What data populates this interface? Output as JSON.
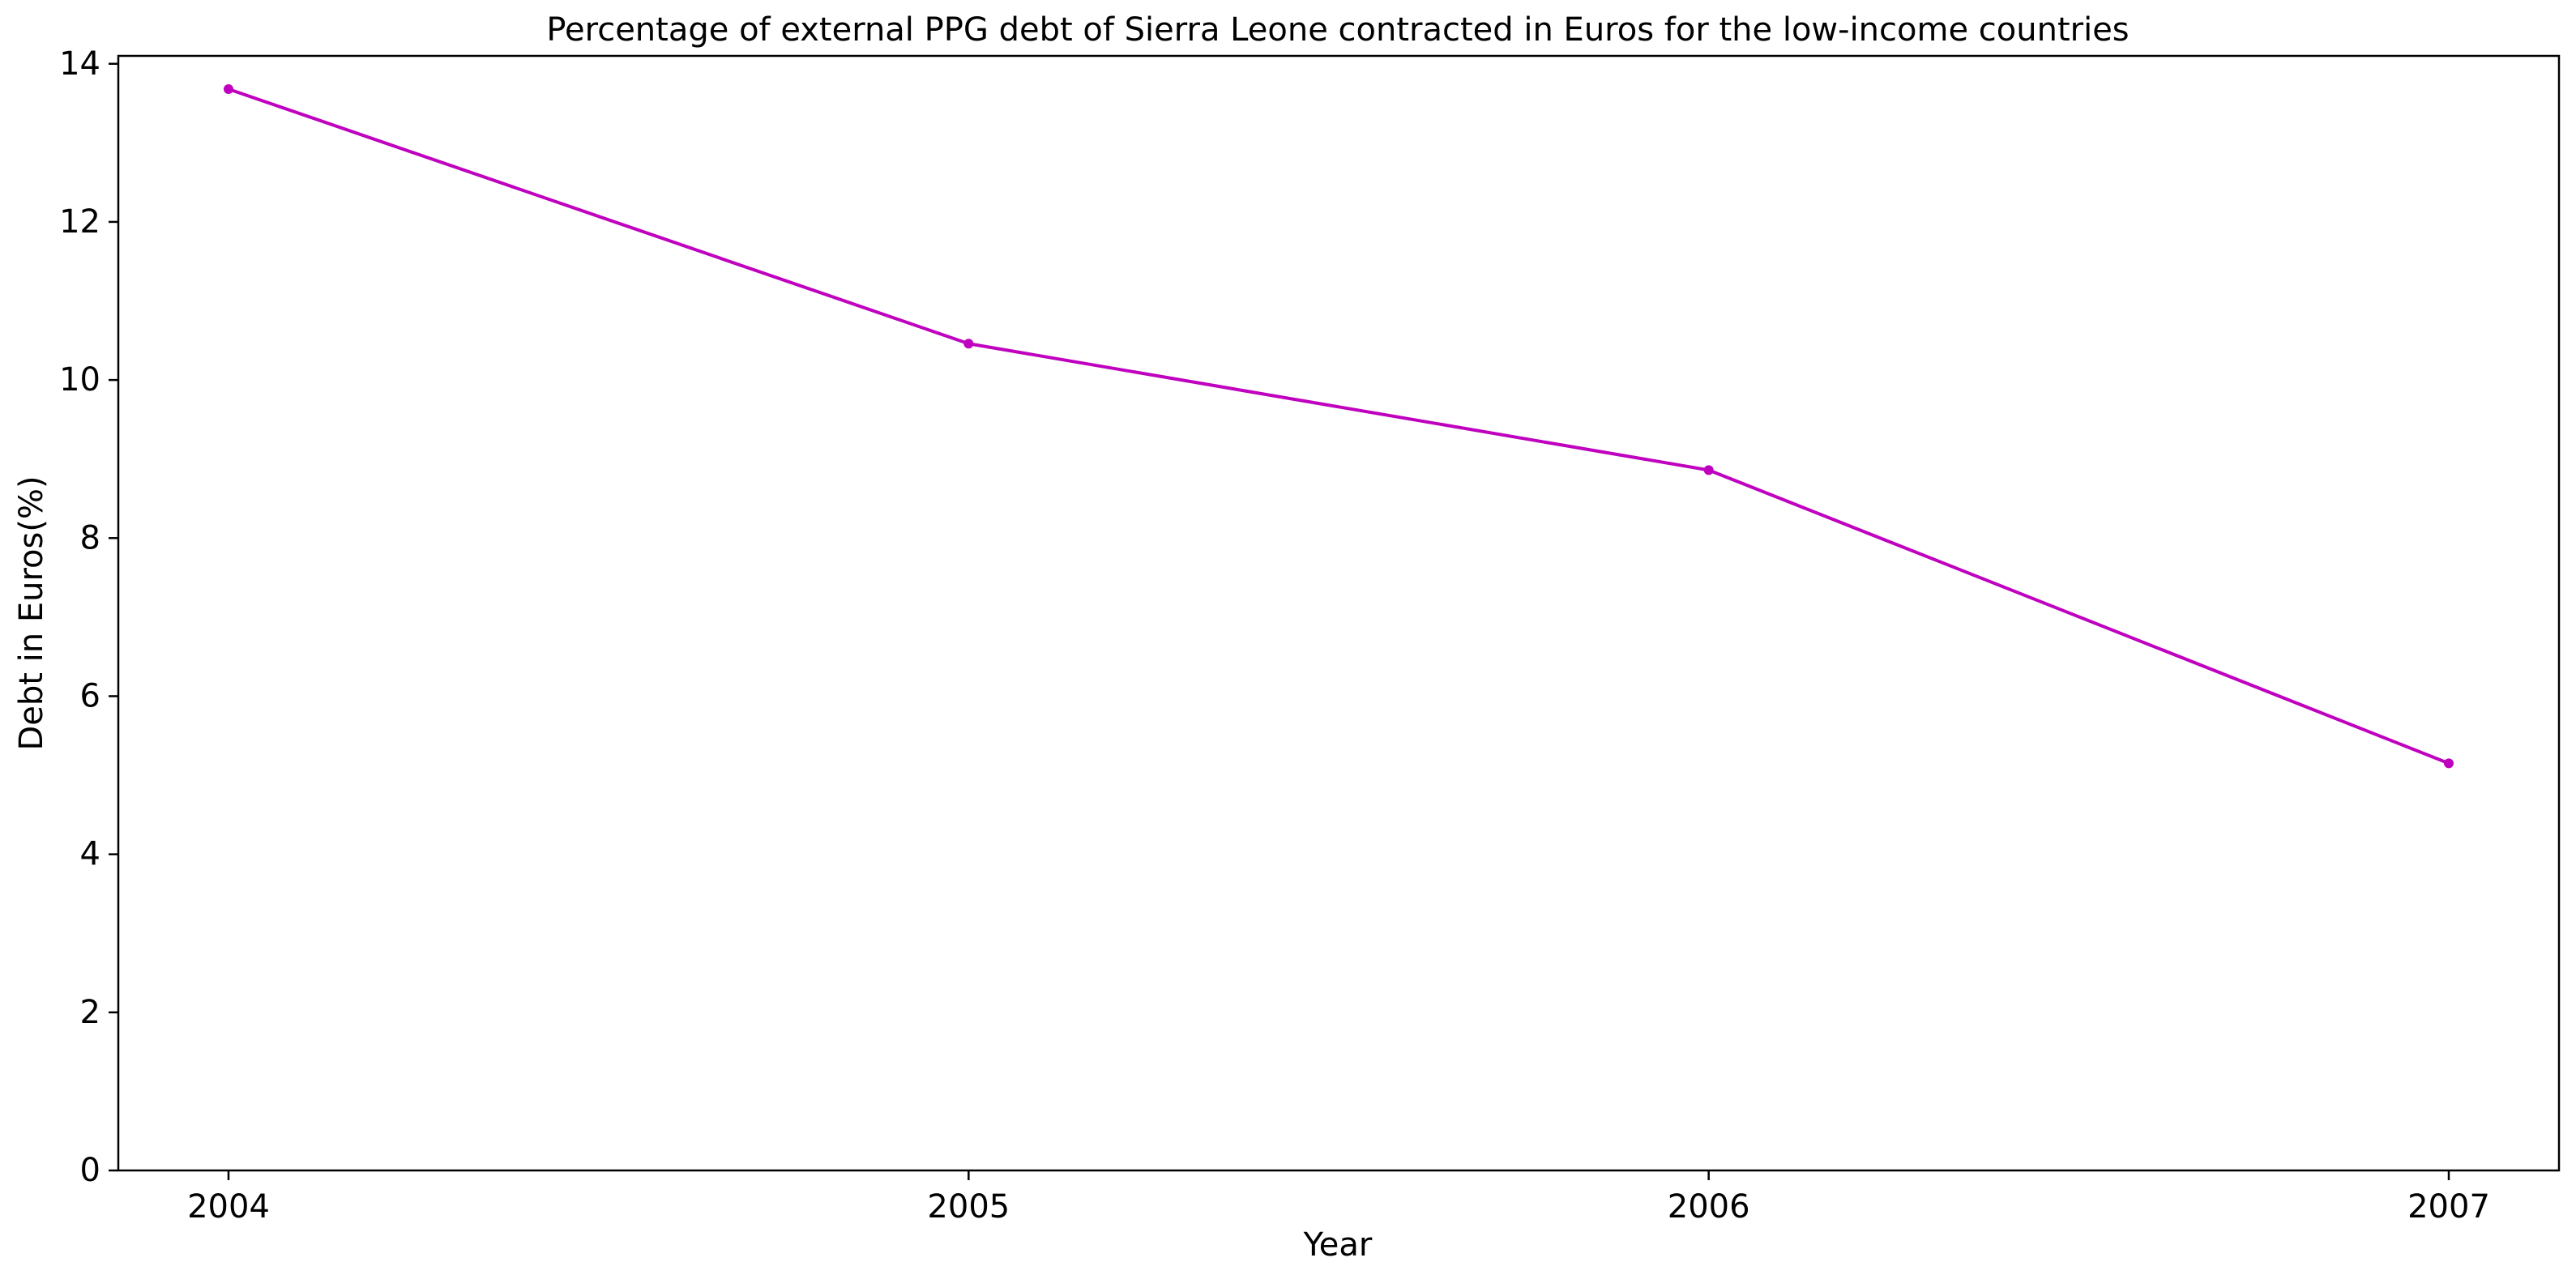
{
  "chart_data": {
    "type": "line",
    "title": "Percentage of external PPG debt of Sierra Leone contracted in Euros for the low-income countries",
    "xlabel": "Year",
    "ylabel": "Debt in Euros(%)",
    "x": [
      "2004",
      "2005",
      "2006",
      "2007"
    ],
    "series": [
      {
        "values": [
          13.68,
          10.46,
          8.86,
          5.15
        ],
        "color": "#bf00bf"
      }
    ],
    "ylim": [
      0,
      14.1
    ],
    "yticks": [
      0,
      2,
      4,
      6,
      8,
      10,
      12,
      14
    ],
    "xticks": [
      "2004",
      "2005",
      "2006",
      "2007"
    ],
    "grid": false,
    "legend": "none",
    "marker": "dot"
  }
}
